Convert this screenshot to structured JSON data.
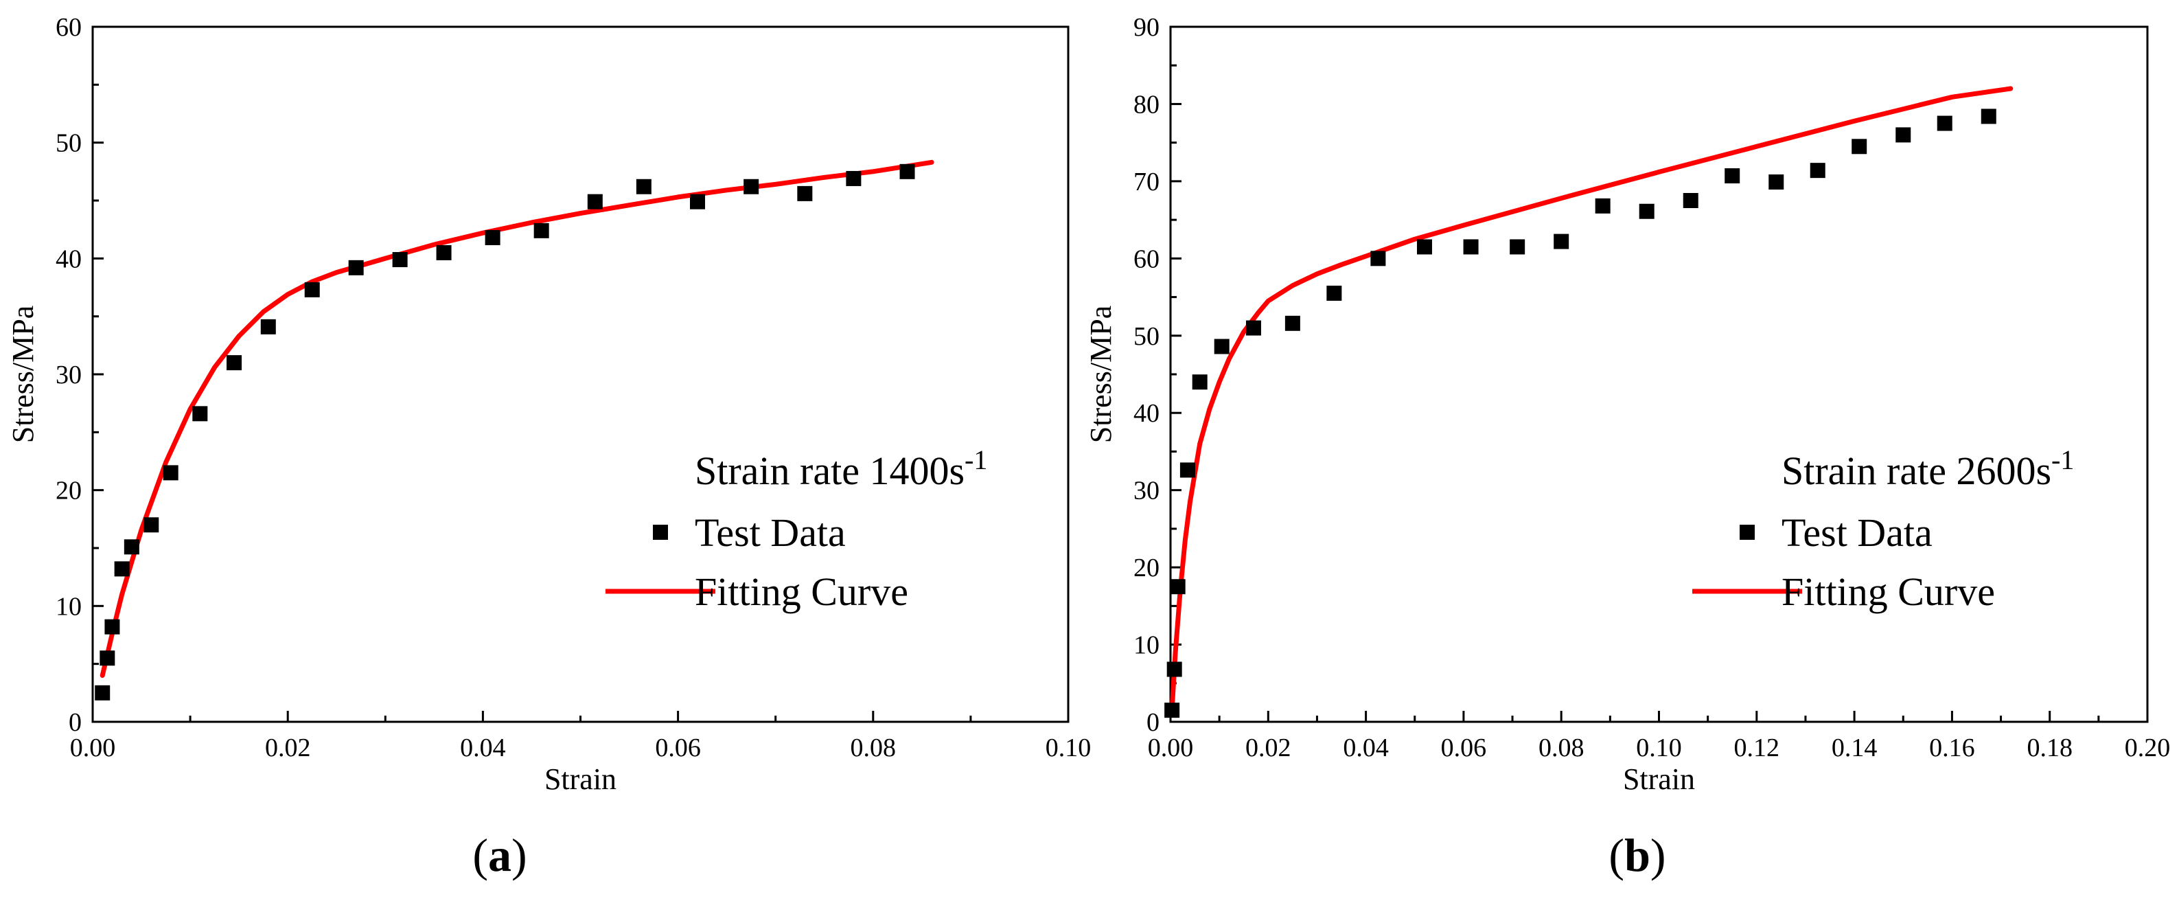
{
  "chart_data": [
    {
      "panel": "a",
      "type": "scatter",
      "title": "",
      "xlabel": "Strain",
      "ylabel": "Stress/MPa",
      "xlim": [
        0,
        0.1
      ],
      "ylim": [
        0,
        60
      ],
      "xticks": [
        0.0,
        0.02,
        0.04,
        0.06,
        0.08,
        0.1
      ],
      "xtick_labels": [
        "0.00",
        "0.02",
        "0.04",
        "0.06",
        "0.08",
        "0.10"
      ],
      "yticks": [
        0,
        10,
        20,
        30,
        40,
        50,
        60
      ],
      "ytick_labels": [
        "0",
        "10",
        "20",
        "30",
        "40",
        "50",
        "60"
      ],
      "legend": {
        "title_main": "Strain rate 1400s",
        "title_sup": "-1",
        "entries": [
          {
            "label": "Test Data",
            "kind": "marker"
          },
          {
            "label": "Fitting Curve",
            "kind": "line"
          }
        ],
        "placement": "bottom-right"
      },
      "panel_label": {
        "open": "(",
        "letter": "a",
        "close": ")"
      },
      "series": [
        {
          "name": "Test Data",
          "kind": "scatter",
          "color": "#000000",
          "x": [
            0.001,
            0.0015,
            0.002,
            0.003,
            0.004,
            0.006,
            0.008,
            0.011,
            0.0145,
            0.018,
            0.0225,
            0.027,
            0.0315,
            0.036,
            0.041,
            0.046,
            0.0515,
            0.0565,
            0.062,
            0.0675,
            0.073,
            0.078,
            0.0835
          ],
          "y": [
            2.5,
            5.5,
            8.2,
            13.2,
            15.1,
            17.0,
            21.5,
            26.6,
            31.0,
            34.1,
            37.3,
            39.2,
            39.9,
            40.5,
            41.8,
            42.4,
            44.9,
            46.2,
            44.9,
            46.2,
            45.6,
            46.9,
            47.5
          ]
        },
        {
          "name": "Fitting Curve",
          "kind": "line",
          "color": "#ff0000",
          "x": [
            0.001,
            0.002,
            0.003,
            0.005,
            0.0075,
            0.01,
            0.0125,
            0.015,
            0.0175,
            0.02,
            0.0225,
            0.025,
            0.0275,
            0.03,
            0.035,
            0.04,
            0.045,
            0.05,
            0.055,
            0.06,
            0.065,
            0.07,
            0.075,
            0.08,
            0.086
          ],
          "y": [
            4.0,
            7.6,
            11.0,
            16.6,
            22.4,
            27.0,
            30.6,
            33.3,
            35.4,
            36.9,
            38.0,
            38.8,
            39.4,
            40.0,
            41.2,
            42.2,
            43.1,
            43.9,
            44.6,
            45.3,
            45.9,
            46.4,
            47.0,
            47.5,
            48.3
          ]
        }
      ]
    },
    {
      "panel": "b",
      "type": "scatter",
      "title": "",
      "xlabel": "Strain",
      "ylabel": "Stress/MPa",
      "xlim": [
        0,
        0.2
      ],
      "ylim": [
        0,
        90
      ],
      "xticks": [
        0.0,
        0.02,
        0.04,
        0.06,
        0.08,
        0.1,
        0.12,
        0.14,
        0.16,
        0.18,
        0.2
      ],
      "xtick_labels": [
        "0.00",
        "0.02",
        "0.04",
        "0.06",
        "0.08",
        "0.10",
        "0.12",
        "0.14",
        "0.16",
        "0.18",
        "0.20"
      ],
      "yticks": [
        0,
        10,
        20,
        30,
        40,
        50,
        60,
        70,
        80,
        90
      ],
      "ytick_labels": [
        "0",
        "10",
        "20",
        "30",
        "40",
        "50",
        "60",
        "70",
        "80",
        "90"
      ],
      "legend": {
        "title_main": "Strain rate 2600s",
        "title_sup": "-1",
        "entries": [
          {
            "label": "Test Data",
            "kind": "marker"
          },
          {
            "label": "Fitting Curve",
            "kind": "line"
          }
        ],
        "placement": "bottom-right"
      },
      "panel_label": {
        "open": "(",
        "letter": "b",
        "close": ")"
      },
      "series": [
        {
          "name": "Test Data",
          "kind": "scatter",
          "color": "#000000",
          "x": [
            0.0003,
            0.0008,
            0.0015,
            0.0035,
            0.006,
            0.0105,
            0.017,
            0.025,
            0.0335,
            0.0425,
            0.052,
            0.0615,
            0.071,
            0.08,
            0.0885,
            0.0975,
            0.1065,
            0.115,
            0.124,
            0.1325,
            0.141,
            0.15,
            0.1585,
            0.1675
          ],
          "y": [
            1.5,
            6.8,
            17.5,
            32.6,
            44.0,
            48.6,
            51.0,
            51.6,
            55.5,
            60.0,
            61.5,
            61.5,
            61.5,
            62.2,
            66.8,
            66.1,
            67.5,
            70.7,
            69.9,
            71.4,
            74.5,
            76.0,
            77.5,
            78.4
          ]
        },
        {
          "name": "Fitting Curve",
          "kind": "line",
          "color": "#ff0000",
          "x": [
            0.0003,
            0.001,
            0.002,
            0.003,
            0.004,
            0.006,
            0.008,
            0.01,
            0.012,
            0.015,
            0.018,
            0.02,
            0.025,
            0.03,
            0.035,
            0.04,
            0.05,
            0.06,
            0.08,
            0.1,
            0.12,
            0.14,
            0.16,
            0.172
          ],
          "y": [
            1.5,
            9.0,
            17.0,
            23.5,
            28.5,
            36.0,
            40.5,
            44.0,
            47.0,
            50.5,
            53.0,
            54.5,
            56.5,
            58.0,
            59.2,
            60.3,
            62.5,
            64.3,
            67.8,
            71.2,
            74.5,
            77.8,
            80.9,
            82.0
          ]
        }
      ]
    }
  ]
}
